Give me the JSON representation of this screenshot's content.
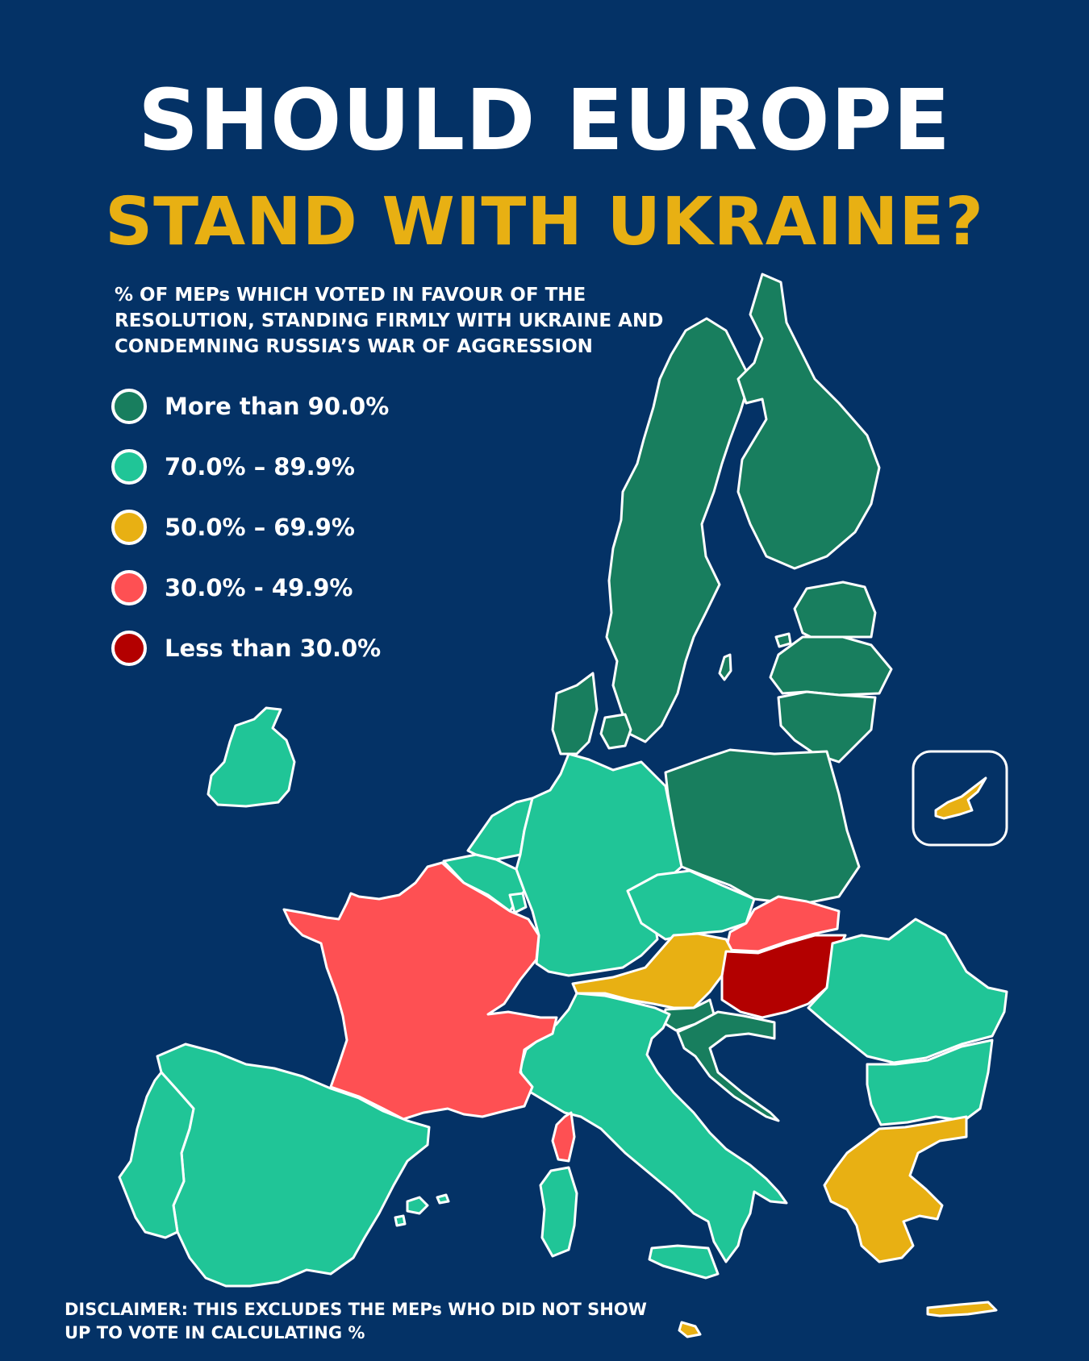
{
  "title": {
    "line1": "SHOULD EUROPE",
    "line2": "STAND WITH UKRAINE?"
  },
  "subtitle": "% OF MEPs WHICH VOTED IN FAVOUR OF THE RESOLUTION, STANDING FIRMLY WITH UKRAINE AND CONDEMNING RUSSIA’S WAR OF AGGRESSION",
  "legend": [
    {
      "label": "More than 90.0%",
      "color": "#187e5e"
    },
    {
      "label": "70.0% – 89.9%",
      "color": "#20c597"
    },
    {
      "label": "50.0% – 69.9%",
      "color": "#e8b013"
    },
    {
      "label": "30.0% - 49.9%",
      "color": "#fe5053"
    },
    {
      "label": "Less than 30.0%",
      "color": "#b30000"
    }
  ],
  "disclaimer": "DISCLAIMER: THIS EXCLUDES THE MEPs WHO DID NOT SHOW UP TO VOTE IN CALCULATING %",
  "colors": {
    "background": "#043266",
    "title_accent": "#e8b013",
    "border": "#ffffff"
  }
}
